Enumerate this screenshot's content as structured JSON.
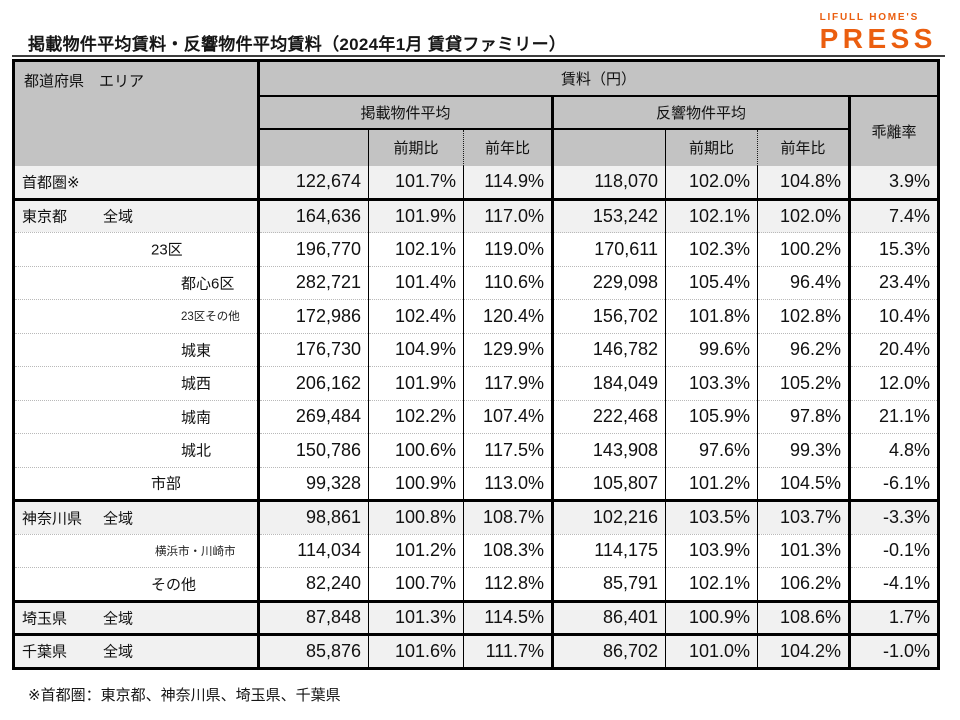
{
  "page": {
    "title": "掲載物件平均賃料・反響物件平均賃料（2024年1月 賃貸ファミリー）",
    "footnote": "※首都圏：東京都、神奈川県、埼玉県、千葉県"
  },
  "logo": {
    "top": "LIFULL HOME'S",
    "main": "PRESS",
    "color": "#EB5E0F"
  },
  "colors": {
    "header_bg": "#C3C3C3",
    "shaded_row_bg": "#F1F1F1",
    "border": "#000000",
    "accent_orange": "#EB5E0F"
  },
  "table": {
    "header": {
      "area": "都道府県　エリア",
      "rent": "賃料（円）",
      "listed": "掲載物件平均",
      "response": "反響物件平均",
      "divergence": "乖離率",
      "prev_period": "前期比",
      "prev_year": "前年比"
    },
    "columns": [
      "都道府県 エリア",
      "掲載物件平均",
      "掲載前期比",
      "掲載前年比",
      "反響物件平均",
      "反響前期比",
      "反響前年比",
      "乖離率"
    ],
    "rows": [
      {
        "pref": "首都圏※",
        "area": "",
        "indent": 0,
        "small": false,
        "shaded": true,
        "group_start": false,
        "values": [
          "122,674",
          "101.7%",
          "114.9%",
          "118,070",
          "102.0%",
          "104.8%",
          "3.9%"
        ]
      },
      {
        "pref": "東京都",
        "area": "全域",
        "indent": 1,
        "small": false,
        "shaded": true,
        "group_start": true,
        "values": [
          "164,636",
          "101.9%",
          "117.0%",
          "153,242",
          "102.1%",
          "102.0%",
          "7.4%"
        ]
      },
      {
        "pref": "",
        "area": "23区",
        "indent": 2,
        "small": false,
        "shaded": false,
        "group_start": false,
        "values": [
          "196,770",
          "102.1%",
          "119.0%",
          "170,611",
          "102.3%",
          "100.2%",
          "15.3%"
        ]
      },
      {
        "pref": "",
        "area": "都心6区",
        "indent": 3,
        "small": false,
        "shaded": false,
        "group_start": false,
        "values": [
          "282,721",
          "101.4%",
          "110.6%",
          "229,098",
          "105.4%",
          "96.4%",
          "23.4%"
        ]
      },
      {
        "pref": "",
        "area": "23区その他",
        "indent": 3,
        "small": true,
        "shaded": false,
        "group_start": false,
        "values": [
          "172,986",
          "102.4%",
          "120.4%",
          "156,702",
          "101.8%",
          "102.8%",
          "10.4%"
        ]
      },
      {
        "pref": "",
        "area": "城東",
        "indent": 3,
        "small": false,
        "shaded": false,
        "group_start": false,
        "values": [
          "176,730",
          "104.9%",
          "129.9%",
          "146,782",
          "99.6%",
          "96.2%",
          "20.4%"
        ]
      },
      {
        "pref": "",
        "area": "城西",
        "indent": 3,
        "small": false,
        "shaded": false,
        "group_start": false,
        "values": [
          "206,162",
          "101.9%",
          "117.9%",
          "184,049",
          "103.3%",
          "105.2%",
          "12.0%"
        ]
      },
      {
        "pref": "",
        "area": "城南",
        "indent": 3,
        "small": false,
        "shaded": false,
        "group_start": false,
        "values": [
          "269,484",
          "102.2%",
          "107.4%",
          "222,468",
          "105.9%",
          "97.8%",
          "21.1%"
        ]
      },
      {
        "pref": "",
        "area": "城北",
        "indent": 3,
        "small": false,
        "shaded": false,
        "group_start": false,
        "values": [
          "150,786",
          "100.6%",
          "117.5%",
          "143,908",
          "97.6%",
          "99.3%",
          "4.8%"
        ]
      },
      {
        "pref": "",
        "area": "市部",
        "indent": 2,
        "small": false,
        "shaded": false,
        "group_start": false,
        "values": [
          "99,328",
          "100.9%",
          "113.0%",
          "105,807",
          "101.2%",
          "104.5%",
          "-6.1%"
        ]
      },
      {
        "pref": "神奈川県",
        "area": "全域",
        "indent": 1,
        "small": false,
        "shaded": true,
        "group_start": true,
        "values": [
          "98,861",
          "100.8%",
          "108.7%",
          "102,216",
          "103.5%",
          "103.7%",
          "-3.3%"
        ]
      },
      {
        "pref": "",
        "area": "横浜市・川崎市",
        "indent": 25,
        "small": true,
        "shaded": false,
        "group_start": false,
        "values": [
          "114,034",
          "101.2%",
          "108.3%",
          "114,175",
          "103.9%",
          "101.3%",
          "-0.1%"
        ]
      },
      {
        "pref": "",
        "area": "その他",
        "indent": 2,
        "small": false,
        "shaded": false,
        "group_start": false,
        "values": [
          "82,240",
          "100.7%",
          "112.8%",
          "85,791",
          "102.1%",
          "106.2%",
          "-4.1%"
        ]
      },
      {
        "pref": "埼玉県",
        "area": "全域",
        "indent": 1,
        "small": false,
        "shaded": true,
        "group_start": true,
        "values": [
          "87,848",
          "101.3%",
          "114.5%",
          "86,401",
          "100.9%",
          "108.6%",
          "1.7%"
        ]
      },
      {
        "pref": "千葉県",
        "area": "全域",
        "indent": 1,
        "small": false,
        "shaded": true,
        "group_start": true,
        "values": [
          "85,876",
          "101.6%",
          "111.7%",
          "86,702",
          "101.0%",
          "104.2%",
          "-1.0%"
        ]
      }
    ]
  }
}
